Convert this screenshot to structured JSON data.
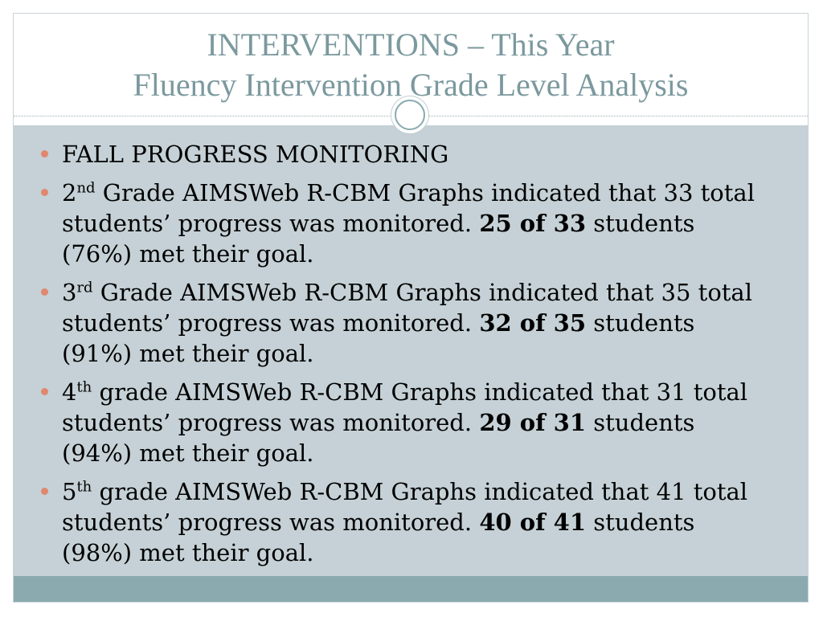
{
  "slide": {
    "title_line1": "INTERVENTIONS – This Year",
    "title_line2": "Fluency Intervention Grade Level Analysis",
    "bullets": [
      {
        "text": "FALL PROGRESS MONITORING"
      },
      {
        "number": "2",
        "suffix": "nd",
        "rest": " Grade AIMSWeb R-CBM Graphs indicated that 33 total students’ progress was monitored.  ",
        "stat": "25 of 33",
        "tail": " students (76%) met their goal."
      },
      {
        "number": "3",
        "suffix": "rd",
        "rest": " Grade AIMSWeb R-CBM Graphs indicated that 35 total students’ progress was monitored.  ",
        "stat": "32 of 35",
        "tail": " students (91%) met their goal."
      },
      {
        "number": "4",
        "suffix": "th",
        "rest": " grade AIMSWeb R-CBM Graphs indicated that 31 total students’ progress was monitored.  ",
        "stat": "29 of 31",
        "tail": " students (94%) met their goal."
      },
      {
        "number": "5",
        "suffix": "th",
        "rest": " grade AIMSWeb R-CBM Graphs indicated that 41 total students’ progress was monitored.  ",
        "stat": "40 of 41",
        "tail": " students (98%) met their goal."
      }
    ]
  },
  "colors": {
    "title": "#7b999e",
    "content_background": "#c5d1d6",
    "footer_band": "#8aaaaf",
    "bullet_dot": "#e0876e"
  }
}
